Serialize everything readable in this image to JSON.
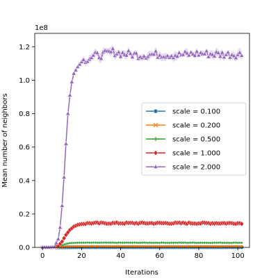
{
  "chart_data": {
    "type": "line",
    "title": "",
    "xlabel": "Iterations",
    "ylabel": "Mean number of neighbors",
    "y_offset_label": "1e8",
    "y_scale": 100000000,
    "xlim": [
      -4,
      106
    ],
    "ylim": [
      0,
      1.28
    ],
    "xticks": [
      0,
      20,
      40,
      60,
      80,
      100
    ],
    "yticks": [
      0.0,
      0.2,
      0.4,
      0.6,
      0.8,
      1.0,
      1.2
    ],
    "ytick_labels": [
      "0.0",
      "0.2",
      "0.4",
      "0.6",
      "0.8",
      "1.0",
      "1.2"
    ],
    "legend_position": "center-right",
    "series": [
      {
        "name": "scale = 0.100",
        "color": "#1f77b4",
        "marker": "circle",
        "plateau": 0.0015,
        "curve_points": [
          [
            0,
            0
          ],
          [
            5,
            0
          ],
          [
            10,
            0.0005
          ],
          [
            14,
            0.0012
          ],
          [
            18,
            0.0015
          ],
          [
            102,
            0.0015
          ]
        ]
      },
      {
        "name": "scale = 0.200",
        "color": "#ff7f0e",
        "marker": "x",
        "plateau": 0.005,
        "curve_points": [
          [
            0,
            0
          ],
          [
            5,
            0
          ],
          [
            9,
            0.001
          ],
          [
            13,
            0.004
          ],
          [
            17,
            0.005
          ],
          [
            102,
            0.005
          ]
        ]
      },
      {
        "name": "scale = 0.500",
        "color": "#2ca02c",
        "marker": "plus",
        "plateau": 0.028,
        "curve_points": [
          [
            0,
            0
          ],
          [
            5,
            0
          ],
          [
            8,
            0.004
          ],
          [
            11,
            0.018
          ],
          [
            14,
            0.026
          ],
          [
            18,
            0.028
          ],
          [
            102,
            0.028
          ]
        ]
      },
      {
        "name": "scale = 1.000",
        "color": "#d62728",
        "marker": "diamond",
        "plateau": 0.145,
        "curve_points": [
          [
            0,
            0
          ],
          [
            5,
            0
          ],
          [
            8,
            0.008
          ],
          [
            10,
            0.035
          ],
          [
            12,
            0.075
          ],
          [
            14,
            0.105
          ],
          [
            16,
            0.125
          ],
          [
            18,
            0.135
          ],
          [
            20,
            0.14
          ],
          [
            24,
            0.145
          ],
          [
            102,
            0.145
          ]
        ]
      },
      {
        "name": "scale = 2.000",
        "color": "#9467bd",
        "marker": "triangle",
        "plateau": 1.155,
        "curve_points": [
          [
            0,
            0
          ],
          [
            4,
            0
          ],
          [
            6,
            0.003
          ],
          [
            8,
            0.05
          ],
          [
            9,
            0.12
          ],
          [
            10,
            0.25
          ],
          [
            11,
            0.42
          ],
          [
            12,
            0.62
          ],
          [
            13,
            0.8
          ],
          [
            14,
            0.91
          ],
          [
            15,
            0.99
          ],
          [
            16,
            1.04
          ],
          [
            18,
            1.08
          ],
          [
            20,
            1.11
          ],
          [
            23,
            1.13
          ],
          [
            27,
            1.145
          ],
          [
            32,
            1.155
          ],
          [
            36,
            1.17
          ],
          [
            40,
            1.16
          ],
          [
            50,
            1.15
          ],
          [
            60,
            1.155
          ],
          [
            70,
            1.15
          ],
          [
            80,
            1.16
          ],
          [
            90,
            1.155
          ],
          [
            102,
            1.155
          ]
        ]
      }
    ]
  }
}
